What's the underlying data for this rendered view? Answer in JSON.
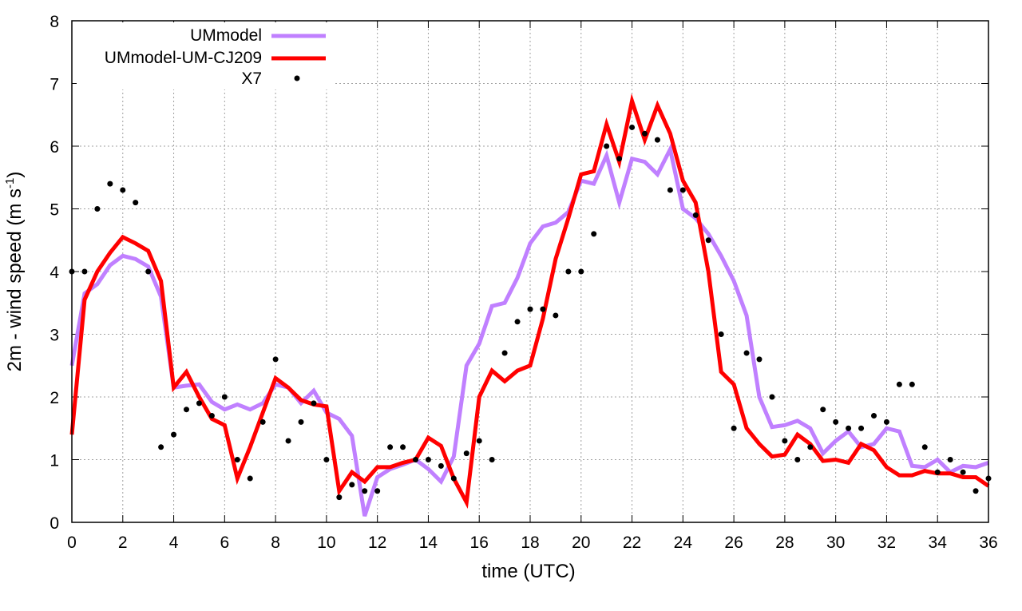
{
  "chart_data": {
    "type": "line",
    "title": "",
    "xlabel": "time (UTC)",
    "ylabel_main": "2m - wind speed  (m s",
    "ylabel_sup": "-1",
    "ylabel_close": ")",
    "xlim": [
      0,
      36
    ],
    "ylim": [
      0,
      8
    ],
    "grid": true,
    "legend_position": "top-left",
    "xticks": [
      "0",
      "2",
      "4",
      "6",
      "8",
      "10",
      "12",
      "14",
      "16",
      "18",
      "20",
      "22",
      "24",
      "26",
      "28",
      "30",
      "32",
      "34",
      "36"
    ],
    "yticks": [
      "0",
      "1",
      "2",
      "3",
      "4",
      "5",
      "6",
      "7",
      "8"
    ],
    "x_step": 0.5,
    "series": [
      {
        "name": "UMmodel",
        "style": "line",
        "color": "#c080ff",
        "values": [
          2.5,
          3.65,
          3.8,
          4.1,
          4.25,
          4.2,
          4.08,
          3.6,
          2.15,
          2.18,
          2.2,
          1.92,
          1.8,
          1.88,
          1.8,
          1.9,
          2.2,
          2.15,
          1.9,
          2.1,
          1.75,
          1.65,
          1.38,
          0.1,
          0.72,
          0.85,
          0.92,
          1.0,
          0.85,
          0.65,
          1.05,
          2.5,
          2.85,
          3.45,
          3.5,
          3.9,
          4.45,
          4.72,
          4.78,
          4.95,
          5.45,
          5.4,
          5.85,
          5.1,
          5.8,
          5.75,
          5.55,
          5.95,
          5.0,
          4.85,
          4.6,
          4.25,
          3.85,
          3.3,
          2.0,
          1.52,
          1.55,
          1.62,
          1.5,
          1.1,
          1.3,
          1.45,
          1.2,
          1.25,
          1.5,
          1.45,
          0.9,
          0.88,
          1.0,
          0.8,
          0.9,
          0.88,
          0.95
        ]
      },
      {
        "name": "UMmodel-UM-CJ209",
        "style": "line",
        "color": "#ff0000",
        "values": [
          1.4,
          3.55,
          4.0,
          4.3,
          4.55,
          4.45,
          4.33,
          3.85,
          2.15,
          2.4,
          2.0,
          1.65,
          1.55,
          0.7,
          1.2,
          1.75,
          2.3,
          2.15,
          1.95,
          1.88,
          1.85,
          0.5,
          0.8,
          0.65,
          0.88,
          0.88,
          0.95,
          1.0,
          1.35,
          1.22,
          0.7,
          0.32,
          2.0,
          2.42,
          2.25,
          2.42,
          2.5,
          3.25,
          4.2,
          4.85,
          5.55,
          5.6,
          6.35,
          5.75,
          6.72,
          6.1,
          6.65,
          6.2,
          5.45,
          5.1,
          4.0,
          2.4,
          2.2,
          1.5,
          1.25,
          1.05,
          1.08,
          1.4,
          1.25,
          0.98,
          1.0,
          0.95,
          1.25,
          1.15,
          0.88,
          0.75,
          0.75,
          0.82,
          0.78,
          0.78,
          0.72,
          0.72,
          0.58
        ]
      },
      {
        "name": "X7",
        "style": "points",
        "color": "#000000",
        "values": [
          4,
          4,
          5,
          5.4,
          5.3,
          5.1,
          4,
          1.2,
          1.4,
          1.8,
          1.9,
          1.7,
          2.0,
          1.0,
          0.7,
          1.6,
          2.6,
          1.3,
          1.6,
          1.9,
          1.0,
          0.4,
          0.6,
          0.5,
          0.5,
          1.2,
          1.2,
          1.0,
          1.0,
          0.9,
          0.7,
          1.1,
          1.3,
          1.0,
          2.7,
          3.2,
          3.4,
          3.4,
          3.3,
          4.0,
          4.0,
          4.6,
          6.0,
          5.8,
          6.3,
          6.2,
          6.1,
          5.3,
          5.3,
          4.9,
          4.5,
          3.0,
          1.5,
          2.7,
          2.6,
          2.0,
          1.3,
          1.0,
          1.2,
          1.8,
          1.6,
          1.5,
          1.5,
          1.7,
          1.6,
          2.2,
          2.2,
          1.2,
          0.8,
          1.0,
          0.8,
          0.5,
          0.7
        ]
      }
    ]
  }
}
